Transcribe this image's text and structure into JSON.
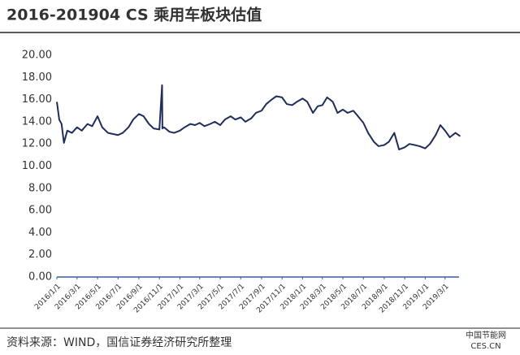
{
  "chart_data": {
    "type": "line",
    "title": "2016-201904 CS 乘用车板块估值",
    "source": "资料来源：WIND，国信证券经济研究所整理",
    "watermark": [
      "中国节能网",
      "CES.CN"
    ],
    "color": "#1f2d5a",
    "x": [
      "2016/1/1",
      "2016/1/8",
      "2016/1/15",
      "2016/1/22",
      "2016/2/1",
      "2016/2/15",
      "2016/3/1",
      "2016/3/15",
      "2016/4/1",
      "2016/4/15",
      "2016/5/1",
      "2016/5/15",
      "2016/6/1",
      "2016/6/15",
      "2016/7/1",
      "2016/7/15",
      "2016/8/1",
      "2016/8/15",
      "2016/9/1",
      "2016/9/15",
      "2016/10/1",
      "2016/10/15",
      "2016/11/1",
      "2016/11/9",
      "2016/11/10",
      "2016/11/15",
      "2016/12/1",
      "2016/12/15",
      "2017/1/1",
      "2017/1/15",
      "2017/2/1",
      "2017/2/15",
      "2017/3/1",
      "2017/3/15",
      "2017/4/1",
      "2017/4/15",
      "2017/5/1",
      "2017/5/15",
      "2017/6/1",
      "2017/6/15",
      "2017/7/1",
      "2017/7/15",
      "2017/8/1",
      "2017/8/15",
      "2017/9/1",
      "2017/9/15",
      "2017/10/1",
      "2017/10/15",
      "2017/11/1",
      "2017/11/15",
      "2017/12/1",
      "2017/12/15",
      "2018/1/1",
      "2018/1/15",
      "2018/2/1",
      "2018/2/15",
      "2018/3/1",
      "2018/3/15",
      "2018/4/1",
      "2018/4/15",
      "2018/5/1",
      "2018/5/15",
      "2018/6/1",
      "2018/6/15",
      "2018/7/1",
      "2018/7/15",
      "2018/8/1",
      "2018/8/15",
      "2018/9/1",
      "2018/9/15",
      "2018/10/1",
      "2018/10/15",
      "2018/11/1",
      "2018/11/15",
      "2018/12/1",
      "2018/12/15",
      "2019/1/1",
      "2019/1/15",
      "2019/2/1",
      "2019/2/15",
      "2019/3/1",
      "2019/3/15",
      "2019/4/1",
      "2019/4/15"
    ],
    "values": [
      15.8,
      14.2,
      13.8,
      12.1,
      13.2,
      13.0,
      13.5,
      13.2,
      13.8,
      13.6,
      14.5,
      13.5,
      13.0,
      12.9,
      12.8,
      13.0,
      13.5,
      14.2,
      14.7,
      14.5,
      13.8,
      13.4,
      13.3,
      17.3,
      13.4,
      13.5,
      13.1,
      13.0,
      13.2,
      13.5,
      13.8,
      13.7,
      13.9,
      13.6,
      13.8,
      14.0,
      13.7,
      14.2,
      14.5,
      14.2,
      14.4,
      14.0,
      14.3,
      14.8,
      15.0,
      15.6,
      16.0,
      16.3,
      16.2,
      15.6,
      15.5,
      15.8,
      16.1,
      15.8,
      14.8,
      15.4,
      15.5,
      16.2,
      15.8,
      14.8,
      15.1,
      14.8,
      15.0,
      14.5,
      13.9,
      13.0,
      12.2,
      11.8,
      11.9,
      12.2,
      13.0,
      11.5,
      11.7,
      12.0,
      11.9,
      11.8,
      11.6,
      12.0,
      12.8,
      13.7,
      13.2,
      12.6,
      13.0,
      12.7
    ],
    "xlim": [
      "2016/1/1",
      "2019/5/1"
    ],
    "xticks": [
      "2016/1/1",
      "2016/3/1",
      "2016/5/1",
      "2016/7/1",
      "2016/9/1",
      "2016/11/1",
      "2017/1/1",
      "2017/3/1",
      "2017/5/1",
      "2017/7/1",
      "2017/9/1",
      "2017/11/1",
      "2018/1/1",
      "2018/3/1",
      "2018/5/1",
      "2018/7/1",
      "2018/9/1",
      "2018/11/1",
      "2019/1/1",
      "2019/3/1"
    ],
    "ylim": [
      0,
      20
    ],
    "yticks": [
      {
        "value": 0,
        "label": "0.00"
      },
      {
        "value": 2,
        "label": "2.00"
      },
      {
        "value": 4,
        "label": "4.00"
      },
      {
        "value": 6,
        "label": "6.00"
      },
      {
        "value": 8,
        "label": "8.00"
      },
      {
        "value": 10,
        "label": "10.00"
      },
      {
        "value": 12,
        "label": "12.00"
      },
      {
        "value": 14,
        "label": "14.00"
      },
      {
        "value": 16,
        "label": "16.00"
      },
      {
        "value": 18,
        "label": "18.00"
      },
      {
        "value": 20,
        "label": "20.00"
      }
    ]
  }
}
